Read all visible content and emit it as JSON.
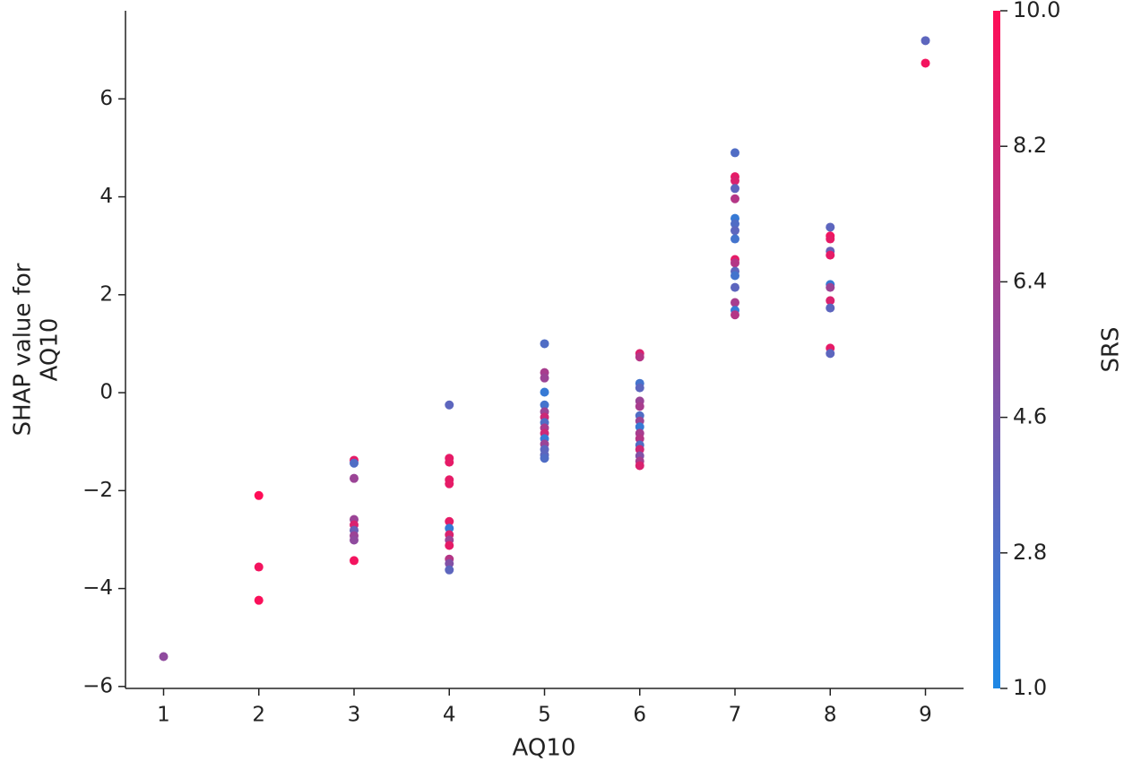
{
  "chart_data": {
    "type": "scatter",
    "xlabel": "AQ10",
    "ylabel": [
      "SHAP value for",
      "AQ10"
    ],
    "x": [
      1,
      2,
      2,
      2,
      3,
      3,
      3,
      3,
      3,
      3,
      3,
      3,
      3,
      4,
      4,
      4,
      4,
      4,
      4,
      4,
      4,
      4,
      4,
      4,
      4,
      4,
      5,
      5,
      5,
      5,
      5,
      5,
      5,
      5,
      5,
      5,
      5,
      5,
      5,
      5,
      5,
      6,
      6,
      6,
      6,
      6,
      6,
      6,
      6,
      6,
      6,
      6,
      6,
      6,
      6,
      6,
      6,
      7,
      7,
      7,
      7,
      7,
      7,
      7,
      7,
      7,
      7,
      7,
      7,
      7,
      7,
      7,
      7,
      7,
      8,
      8,
      8,
      8,
      8,
      8,
      8,
      8,
      8,
      8,
      8,
      9,
      9
    ],
    "values": [
      -5.39,
      -2.1,
      -3.56,
      -4.24,
      -1.38,
      -1.44,
      -1.75,
      -2.59,
      -2.7,
      -2.81,
      -2.92,
      -3.01,
      -3.43,
      -0.25,
      -1.34,
      -1.42,
      -1.78,
      -1.86,
      -2.63,
      -2.77,
      -2.9,
      -3.01,
      -3.12,
      -3.4,
      -3.49,
      -3.62,
      1.0,
      0.41,
      0.3,
      0.01,
      -0.25,
      -0.39,
      -0.5,
      -0.61,
      -0.72,
      -0.83,
      -0.94,
      -1.05,
      -1.16,
      -1.27,
      -1.34,
      0.8,
      0.73,
      0.19,
      0.1,
      -0.17,
      -0.28,
      -0.47,
      -0.58,
      -0.7,
      -0.83,
      -0.94,
      -1.07,
      -1.16,
      -1.29,
      -1.4,
      -1.49,
      4.9,
      4.41,
      4.33,
      4.17,
      3.96,
      3.56,
      3.45,
      3.31,
      3.14,
      2.72,
      2.65,
      2.48,
      2.39,
      2.15,
      1.84,
      1.68,
      1.59,
      3.38,
      3.2,
      3.14,
      2.89,
      2.81,
      2.21,
      2.15,
      1.88,
      1.73,
      0.91,
      0.8,
      7.19,
      6.73
    ],
    "color_values": [
      5.5,
      10,
      9.5,
      9.8,
      9,
      3,
      6,
      6,
      8.5,
      4,
      6,
      5.5,
      9.5,
      3.5,
      9,
      9,
      9,
      9,
      9,
      2,
      8.5,
      6,
      9,
      7,
      5,
      3.5,
      3,
      6.5,
      6,
      2,
      2.5,
      6,
      8,
      3,
      6.5,
      8,
      2,
      6,
      3.5,
      3.5,
      3,
      8.5,
      7,
      2.5,
      3.5,
      6,
      6.5,
      3,
      6,
      2,
      6.5,
      7,
      3,
      8,
      5,
      6.5,
      8.5,
      3,
      9,
      8.5,
      3.5,
      7,
      2,
      3,
      3.5,
      2.5,
      9,
      7,
      3.5,
      2.5,
      3.5,
      6.5,
      2,
      7,
      3.5,
      9.5,
      9,
      4,
      9,
      2,
      6,
      8.5,
      3.5,
      9,
      3.5,
      3.5,
      9.5
    ],
    "xlim": [
      0.6,
      9.4
    ],
    "xticks": [
      1,
      2,
      3,
      4,
      5,
      6,
      7,
      8,
      9
    ],
    "ylim": [
      -6.04,
      7.8
    ],
    "yticks": [
      {
        "value": -6,
        "label": "−6"
      },
      {
        "value": -4,
        "label": "−4"
      },
      {
        "value": -2,
        "label": "−2"
      },
      0,
      2,
      4,
      6
    ],
    "colorbar": {
      "label": "SRS",
      "lim": [
        1,
        10
      ],
      "colors": [
        "#1E88E5",
        "#FF0D57"
      ],
      "ticks": [
        {
          "value": 1,
          "label": "1.0"
        },
        2.8,
        4.6,
        6.4,
        8.2,
        {
          "value": 10,
          "label": "10.0"
        }
      ]
    }
  }
}
